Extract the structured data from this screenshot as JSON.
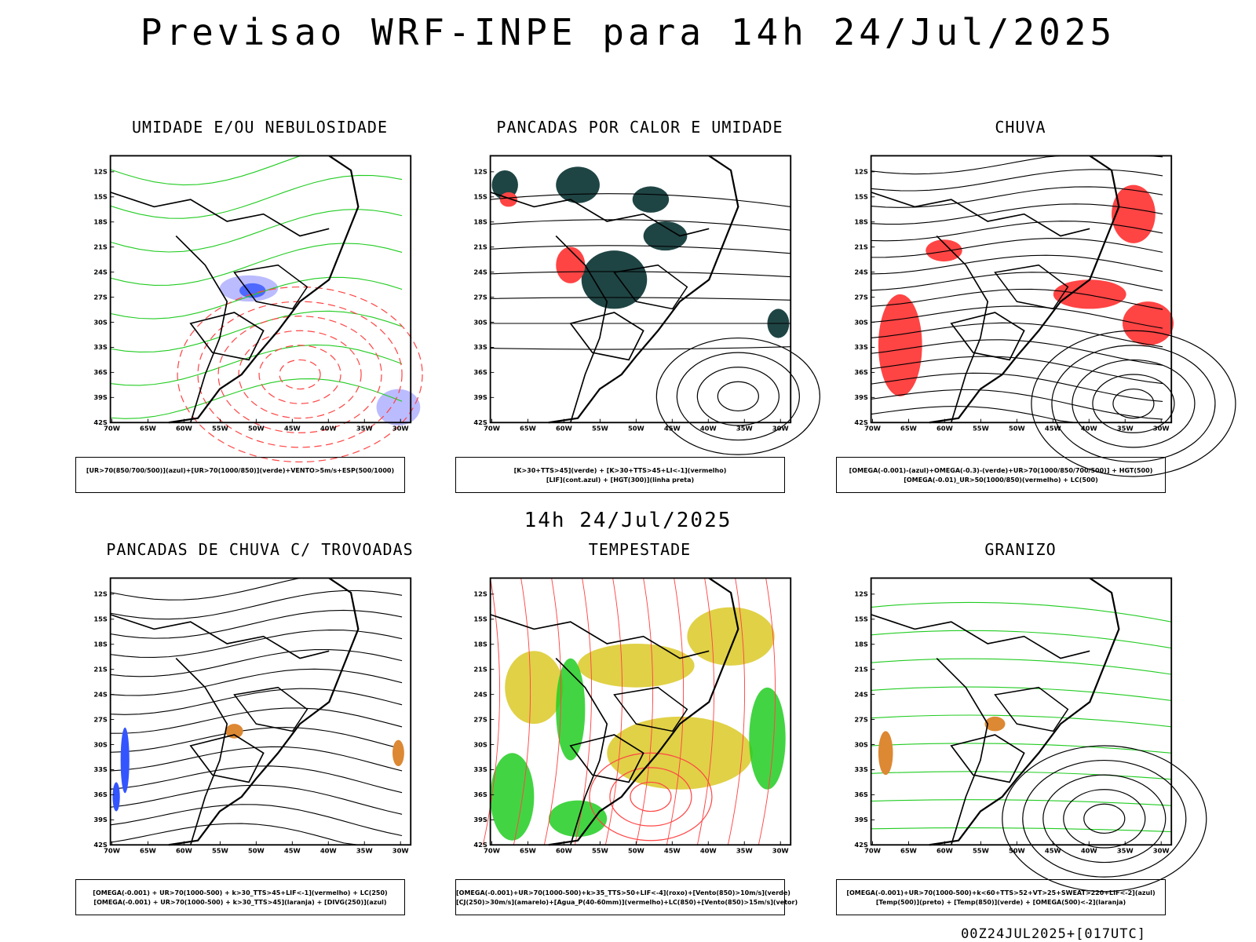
{
  "main_title": "Previsao WRF-INPE  para 14h 24/Jul/2025",
  "mid_time": "14h 24/Jul/2025",
  "footer": "00Z24JUL2025+[017UTC]",
  "colors": {
    "green": "#22cc22",
    "red": "#ff4444",
    "blue": "#3355ff",
    "darkteal": "#1f4444",
    "yellow": "#ddcc33",
    "orange": "#dd8833",
    "lavender": "#aaaaff"
  },
  "chart_data": [
    {
      "type": "map",
      "title": "UMIDADE E/OU NEBULOSIDADE",
      "legend": [
        "[UR>70(850/700/500)](azul)+[UR>70(1000/850)](verde)+VENTO>5m/s+ESP(500/1000)"
      ],
      "lon_ticks": [
        "70W",
        "65W",
        "60W",
        "55W",
        "50W",
        "45W",
        "40W",
        "35W",
        "30W"
      ],
      "lat_ticks": [
        "12S",
        "15S",
        "18S",
        "21S",
        "24S",
        "27S",
        "30S",
        "33S",
        "36S",
        "39S",
        "42S"
      ]
    },
    {
      "type": "map",
      "title": "PANCADAS POR CALOR E UMIDADE",
      "legend": [
        "[K>30+TTS>45](verde) + [K>30+TTS>45+LI<-1](vermelho)",
        "[LIF](cont.azul) + [HGT(300)](linha preta)"
      ],
      "lon_ticks": [
        "70W",
        "65W",
        "60W",
        "55W",
        "50W",
        "45W",
        "40W",
        "35W",
        "30W"
      ],
      "lat_ticks": [
        "12S",
        "15S",
        "18S",
        "21S",
        "24S",
        "27S",
        "30S",
        "33S",
        "36S",
        "39S",
        "42S"
      ]
    },
    {
      "type": "map",
      "title": "CHUVA",
      "legend": [
        "[OMEGA(-0.001)-(azul)+OMEGA(-0.3)-(verde)+UR>70(1000/850/700/500)] + HGT(500)",
        "[OMEGA(-0.01)_UR>50(1000/850)(vermelho) + LC(500)"
      ],
      "lon_ticks": [
        "70W",
        "65W",
        "60W",
        "55W",
        "50W",
        "45W",
        "40W",
        "35W",
        "30W"
      ],
      "lat_ticks": [
        "12S",
        "15S",
        "18S",
        "21S",
        "24S",
        "27S",
        "30S",
        "33S",
        "36S",
        "39S",
        "42S"
      ]
    },
    {
      "type": "map",
      "title": "PANCADAS DE CHUVA C/ TROVOADAS",
      "legend": [
        "[OMEGA(-0.001) + UR>70(1000-500) + k>30_TTS>45+LIF<-1](vermelho) + LC(250)",
        "[OMEGA(-0.001) + UR>70(1000-500) + k>30_TTS>45](laranja) + [DIVG(250)](azul)"
      ],
      "lon_ticks": [
        "70W",
        "65W",
        "60W",
        "55W",
        "50W",
        "45W",
        "40W",
        "35W",
        "30W"
      ],
      "lat_ticks": [
        "12S",
        "15S",
        "18S",
        "21S",
        "24S",
        "27S",
        "30S",
        "33S",
        "36S",
        "39S",
        "42S"
      ]
    },
    {
      "type": "map",
      "title": "TEMPESTADE",
      "legend": [
        "[OMEGA(-0.001)+UR>70(1000-500)+k>35_TTS>50+LIF<-4](roxo)+[Vento(850)>10m/s](verde)",
        "[CJ(250)>30m/s](amarelo)+[Agua_P(40-60mm)](vermelho)+LC(850)+[Vento(850)>15m/s](vetor)"
      ],
      "lon_ticks": [
        "70W",
        "65W",
        "60W",
        "55W",
        "50W",
        "45W",
        "40W",
        "35W",
        "30W"
      ],
      "lat_ticks": [
        "12S",
        "15S",
        "18S",
        "21S",
        "24S",
        "27S",
        "30S",
        "33S",
        "36S",
        "39S",
        "42S"
      ]
    },
    {
      "type": "map",
      "title": "GRANIZO",
      "legend": [
        "[OMEGA(-0.001)+UR>70(1000-500)+k<60+TTS>52+VT>25+SWEAT>220+LIF<-2](azul)",
        "[Temp(500)](preto) + [Temp(850)](verde) + [OMEGA(500)<-2](laranja)"
      ],
      "lon_ticks": [
        "70W",
        "65W",
        "60W",
        "55W",
        "50W",
        "45W",
        "40W",
        "35W",
        "30W"
      ],
      "lat_ticks": [
        "12S",
        "15S",
        "18S",
        "21S",
        "24S",
        "27S",
        "30S",
        "33S",
        "36S",
        "39S",
        "42S"
      ]
    }
  ]
}
